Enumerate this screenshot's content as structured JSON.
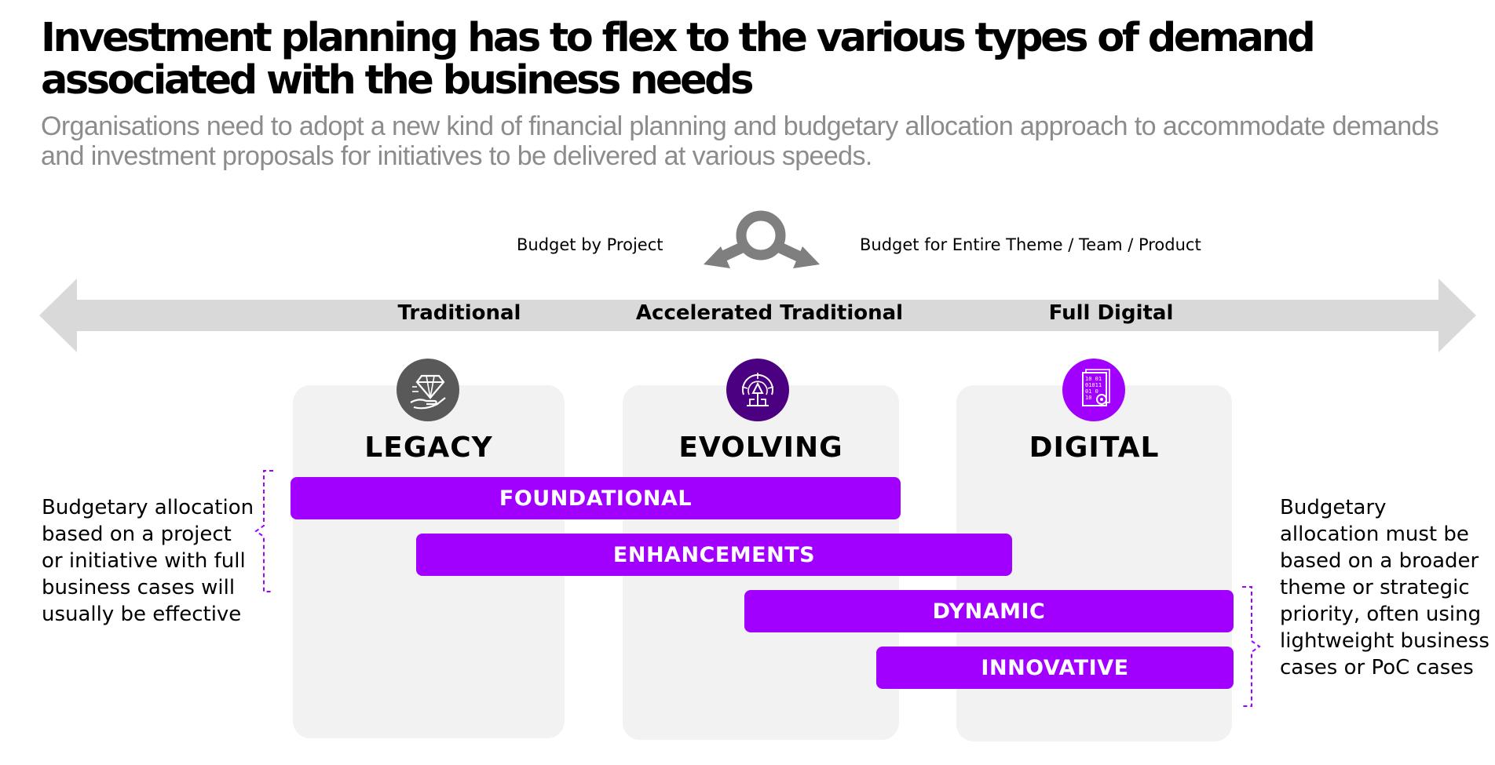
{
  "header": {
    "title": "Investment planning has to flex to the various types of demand associated with the business needs",
    "subtitle": "Organisations need to adopt a new kind of financial planning and budgetary allocation approach to accommodate demands and investment proposals for initiatives to be delivered at various speeds."
  },
  "toggle": {
    "left_label": "Budget by Project",
    "right_label": "Budget for Entire Theme / Team / Product"
  },
  "spectrum": {
    "phases": [
      "Traditional",
      "Accelerated Traditional",
      "Full Digital"
    ]
  },
  "cards": [
    {
      "title": "LEGACY",
      "icon": "diamond-hand-icon",
      "icon_color": "#595959"
    },
    {
      "title": "EVOLVING",
      "icon": "compass-arrow-icon",
      "icon_color": "#4b0082"
    },
    {
      "title": "DIGITAL",
      "icon": "binary-document-icon",
      "icon_color": "#a100ff"
    }
  ],
  "bars": [
    {
      "label": "FOUNDATIONAL"
    },
    {
      "label": "ENHANCEMENTS"
    },
    {
      "label": "DYNAMIC"
    },
    {
      "label": "INNOVATIVE"
    }
  ],
  "side_notes": {
    "left": "Budgetary allocation based on a project or initiative with full business cases will usually be effective",
    "right": "Budgetary allocation must be based on a broader theme or strategic priority, often using lightweight business cases or PoC cases"
  },
  "colors": {
    "accent": "#a100ff",
    "card_bg": "#f2f2f2",
    "arrow": "#d9d9d9",
    "subtitle": "#8c8c8c"
  }
}
